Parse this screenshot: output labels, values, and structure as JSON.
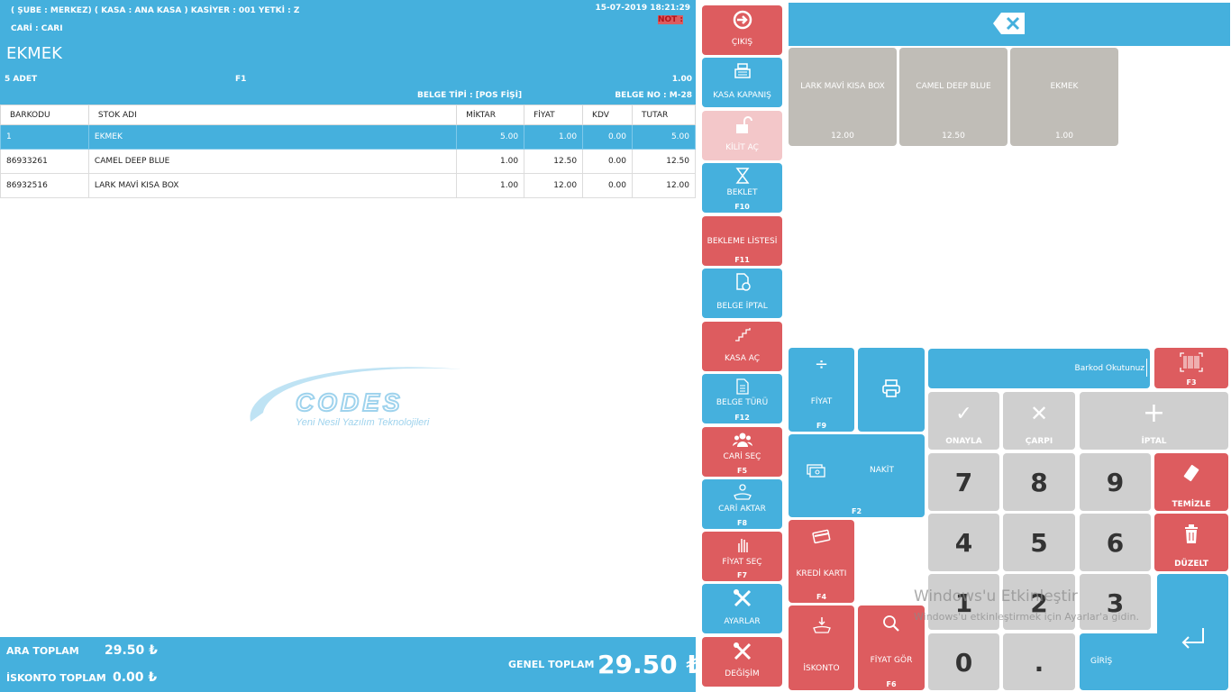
{
  "header": {
    "session": "( ŞUBE : MERKEZ) ( KASA : ANA KASA ) KASİYER : 001 YETKİ : Z",
    "customer": "CARİ : CARI",
    "datetime": "15-07-2019 18:21:29",
    "note": "NOT :",
    "item_name": "EKMEK",
    "quantity": "5 ADET",
    "price_key": "F1",
    "unit_price": "1.00",
    "doc_type": "BELGE TİPİ : [POS FİŞİ]",
    "doc_no": "BELGE NO :  M-28"
  },
  "table": {
    "columns": [
      "BARKODU",
      "STOK ADI",
      "MİKTAR",
      "FİYAT",
      "KDV",
      "TUTAR"
    ],
    "rows": [
      {
        "barcode": "1",
        "name": "EKMEK",
        "qty": "5.00",
        "price": "1.00",
        "vat": "0.00",
        "total": "5.00",
        "selected": true
      },
      {
        "barcode": "86933261",
        "name": "CAMEL DEEP BLUE",
        "qty": "1.00",
        "price": "12.50",
        "vat": "0.00",
        "total": "12.50",
        "selected": false
      },
      {
        "barcode": "86932516",
        "name": "LARK MAVİ KISA BOX",
        "qty": "1.00",
        "price": "12.00",
        "vat": "0.00",
        "total": "12.00",
        "selected": false
      }
    ]
  },
  "logo": {
    "name": "CODES",
    "tagline": "Yeni Nesil Yazılım Teknolojileri"
  },
  "footer": {
    "subtotal_label": "ARA TOPLAM",
    "subtotal": "29.50 ₺",
    "discount_label": "İSKONTO TOPLAM",
    "discount": "0.00 ₺",
    "grand_label": "GENEL TOPLAM",
    "grand": "29.50 ₺"
  },
  "sidebar": {
    "items": [
      {
        "label": "ÇIKIŞ",
        "key": "",
        "icon": "exit-icon"
      },
      {
        "label": "KASA KAPANIŞ",
        "key": "",
        "icon": "cash-register-icon"
      },
      {
        "label": "KİLİT AÇ",
        "key": "",
        "icon": "unlock-icon"
      },
      {
        "label": "BEKLET",
        "key": "F10",
        "icon": "hourglass-icon"
      },
      {
        "label": "BEKLEME LİSTESİ",
        "key": "F11",
        "icon": ""
      },
      {
        "label": "BELGE İPTAL",
        "key": "",
        "icon": "document-cancel-icon"
      },
      {
        "label": "KASA AÇ",
        "key": "",
        "icon": "stairs-icon"
      },
      {
        "label": "BELGE TÜRÜ",
        "key": "F12",
        "icon": "document-icon"
      },
      {
        "label": "CARİ SEÇ",
        "key": "F5",
        "icon": "users-icon"
      },
      {
        "label": "CARİ AKTAR",
        "key": "F8",
        "icon": "hand-user-icon"
      },
      {
        "label": "FİYAT SEÇ",
        "key": "F7",
        "icon": "hand-pointer-icon"
      },
      {
        "label": "AYARLAR",
        "key": "",
        "icon": "tools-icon"
      },
      {
        "label": "DEĞİŞİM",
        "key": "",
        "icon": "tools-icon"
      }
    ]
  },
  "products": [
    {
      "name": "LARK MAVİ KISA BOX",
      "price": "12.00"
    },
    {
      "name": "CAMEL DEEP BLUE",
      "price": "12.50"
    },
    {
      "name": "EKMEK",
      "price": "1.00"
    }
  ],
  "keypad": {
    "fiyat": "FİYAT",
    "fiyat_key": "F9",
    "nakit": "NAKİT",
    "nakit_key": "F2",
    "kredi": "KREDİ KARTI",
    "kredi_key": "F4",
    "iskonto": "İSKONTO",
    "fiyat_gor": "FİYAT GÖR",
    "fiyat_gor_key": "F6",
    "barcode_placeholder": "Barkod Okutunuz",
    "barcode_key": "F3",
    "onayla": "ONAYLA",
    "carpi": "ÇARPI",
    "iptal": "İPTAL",
    "temizle": "TEMİZLE",
    "duzelt": "DÜZELT",
    "giris": "GİRİŞ",
    "digits": [
      "7",
      "8",
      "9",
      "4",
      "5",
      "6",
      "1",
      "2",
      "3",
      "0",
      "."
    ]
  },
  "watermark": {
    "title": "Windows'u Etkinleştir",
    "subtitle": "Windows'u etkinleştirmek için Ayarlar'a gidin."
  }
}
